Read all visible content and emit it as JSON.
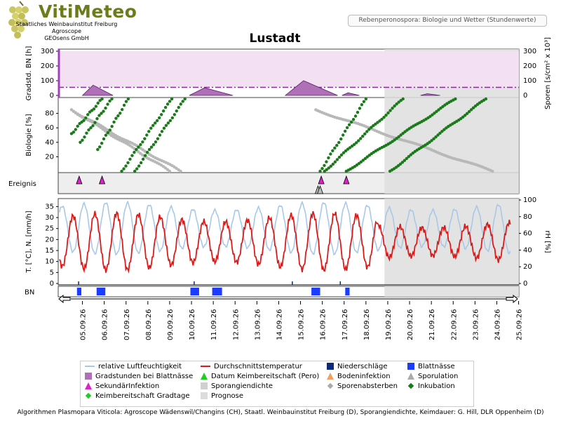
{
  "header": {
    "logo_text": "VitiMeteo",
    "institute_line1": "Staatliches Weinbauinstitut Freiburg",
    "institute_line2": "Agroscope",
    "institute_line3": "GEOsens GmbH",
    "subtitle": "Rebenperonospora: Biologie und Wetter (Stundenwerte)"
  },
  "footer": "Algorithmen Plasmopara Viticola: Agroscope Wädenswil/Changins (CH), Staatl. Weinbauinstitut Freiburg (D), Sporangiendichte, Keimdauer: G. Hill, DLR Oppenheim (D)",
  "legend": [
    {
      "label": "relative Luftfeuchtigkeit",
      "symbol": "line",
      "color": "#a8c8e8"
    },
    {
      "label": "Durchschnittstemperatur",
      "symbol": "line",
      "color": "#dd1a1a"
    },
    {
      "label": "Niederschläge",
      "symbol": "square",
      "color": "#0c2a7a"
    },
    {
      "label": "Blattnässe",
      "symbol": "square",
      "color": "#1c3cff"
    },
    {
      "label": "Gradstunden bei Blattnässe",
      "symbol": "square",
      "color": "#b070b8"
    },
    {
      "label": "Datum Keimbereitschaft (Pero)",
      "symbol": "triangle",
      "color": "#22cc22"
    },
    {
      "label": "Bodeninfektion",
      "symbol": "triangle",
      "color": "#f0a060"
    },
    {
      "label": "Sporulation",
      "symbol": "triangle",
      "color": "#aaaaaa"
    },
    {
      "label": "SekundärInfektion",
      "symbol": "triangle",
      "color": "#dd22cc"
    },
    {
      "label": "Sporangiendichte",
      "symbol": "square",
      "color": "#d0d0d0"
    },
    {
      "label": "Sporenabsterben",
      "symbol": "diamond",
      "color": "#aaaaaa"
    },
    {
      "label": "Inkubation",
      "symbol": "diamond",
      "color": "#1a7a1a"
    },
    {
      "label": "Keimbereitschaft Gradtage",
      "symbol": "diamond",
      "color": "#22cc22"
    },
    {
      "label": "Prognose",
      "symbol": "square",
      "color": "#dcdcdc"
    }
  ],
  "chart_data": {
    "type": "line",
    "title": "Lustadt",
    "dates": [
      "05.09.26",
      "06.09.26",
      "07.09.26",
      "08.09.26",
      "09.09.26",
      "10.09.26",
      "11.09.26",
      "12.09.26",
      "13.09.26",
      "14.09.26",
      "15.09.26",
      "16.09.26",
      "17.09.26",
      "18.09.26",
      "19.09.26",
      "20.09.26",
      "21.09.26",
      "22.09.26",
      "23.09.26",
      "24.09.26",
      "25.09.26"
    ],
    "forecast_start_day": 14.35,
    "panels": {
      "gradstunden": {
        "ylabel_left": "Gradstd. BN [h]",
        "ylabel_right": "Sporen [s/cm² x 10³]",
        "yticks_left": [
          0,
          100,
          200,
          300
        ],
        "yticks_right": [
          0,
          100,
          200,
          300
        ],
        "threshold": 55,
        "peaks": [
          [
            0.5,
            1.9,
            70
          ],
          [
            5.4,
            7.4,
            52
          ],
          [
            9.8,
            12.2,
            100
          ],
          [
            12.4,
            13.2,
            18
          ],
          [
            16.0,
            16.9,
            12
          ]
        ]
      },
      "biologie": {
        "ylabel": "Biologie [%]",
        "yticks": [
          20,
          40,
          60,
          80
        ],
        "inkubation": [
          [
            0.0,
            1.4
          ],
          [
            0.4,
            1.85
          ],
          [
            1.2,
            2.6
          ],
          [
            2.3,
            4.6
          ],
          [
            2.9,
            5.2
          ],
          [
            11.4,
            13.5
          ],
          [
            11.6,
            15.2
          ],
          [
            12.6,
            17.6
          ],
          [
            14.6,
            19.0
          ]
        ],
        "sporenabsterben": [
          [
            0.0,
            4.5
          ],
          [
            0.0,
            5.0
          ],
          [
            11.2,
            19.3
          ]
        ]
      },
      "ereignis": {
        "label": "Ereignis",
        "sekundaerinfektion": [
          0.35,
          1.4,
          11.45,
          12.6
        ],
        "sporulation": [
          11.3,
          11.4
        ]
      },
      "wetter": {
        "ylabel_left": "T. [°C], N. [mm/h]",
        "ylabel_right": "rH [%]",
        "yticks_left": [
          0,
          5,
          10,
          15,
          20,
          25,
          30,
          35
        ],
        "yticks_right": [
          0,
          20,
          40,
          60,
          80,
          100
        ],
        "rh_range": [
          35,
          97
        ],
        "temp_range": [
          6,
          32
        ],
        "niederschlag_days": [
          0.3,
          5.6,
          10.1,
          12.3
        ]
      },
      "blattnaesse": {
        "label": "BN",
        "intervals": [
          [
            0.25,
            0.45
          ],
          [
            1.15,
            1.55
          ],
          [
            5.45,
            5.85
          ],
          [
            6.45,
            6.9
          ],
          [
            11.0,
            11.4
          ],
          [
            12.55,
            12.75
          ]
        ]
      }
    }
  }
}
